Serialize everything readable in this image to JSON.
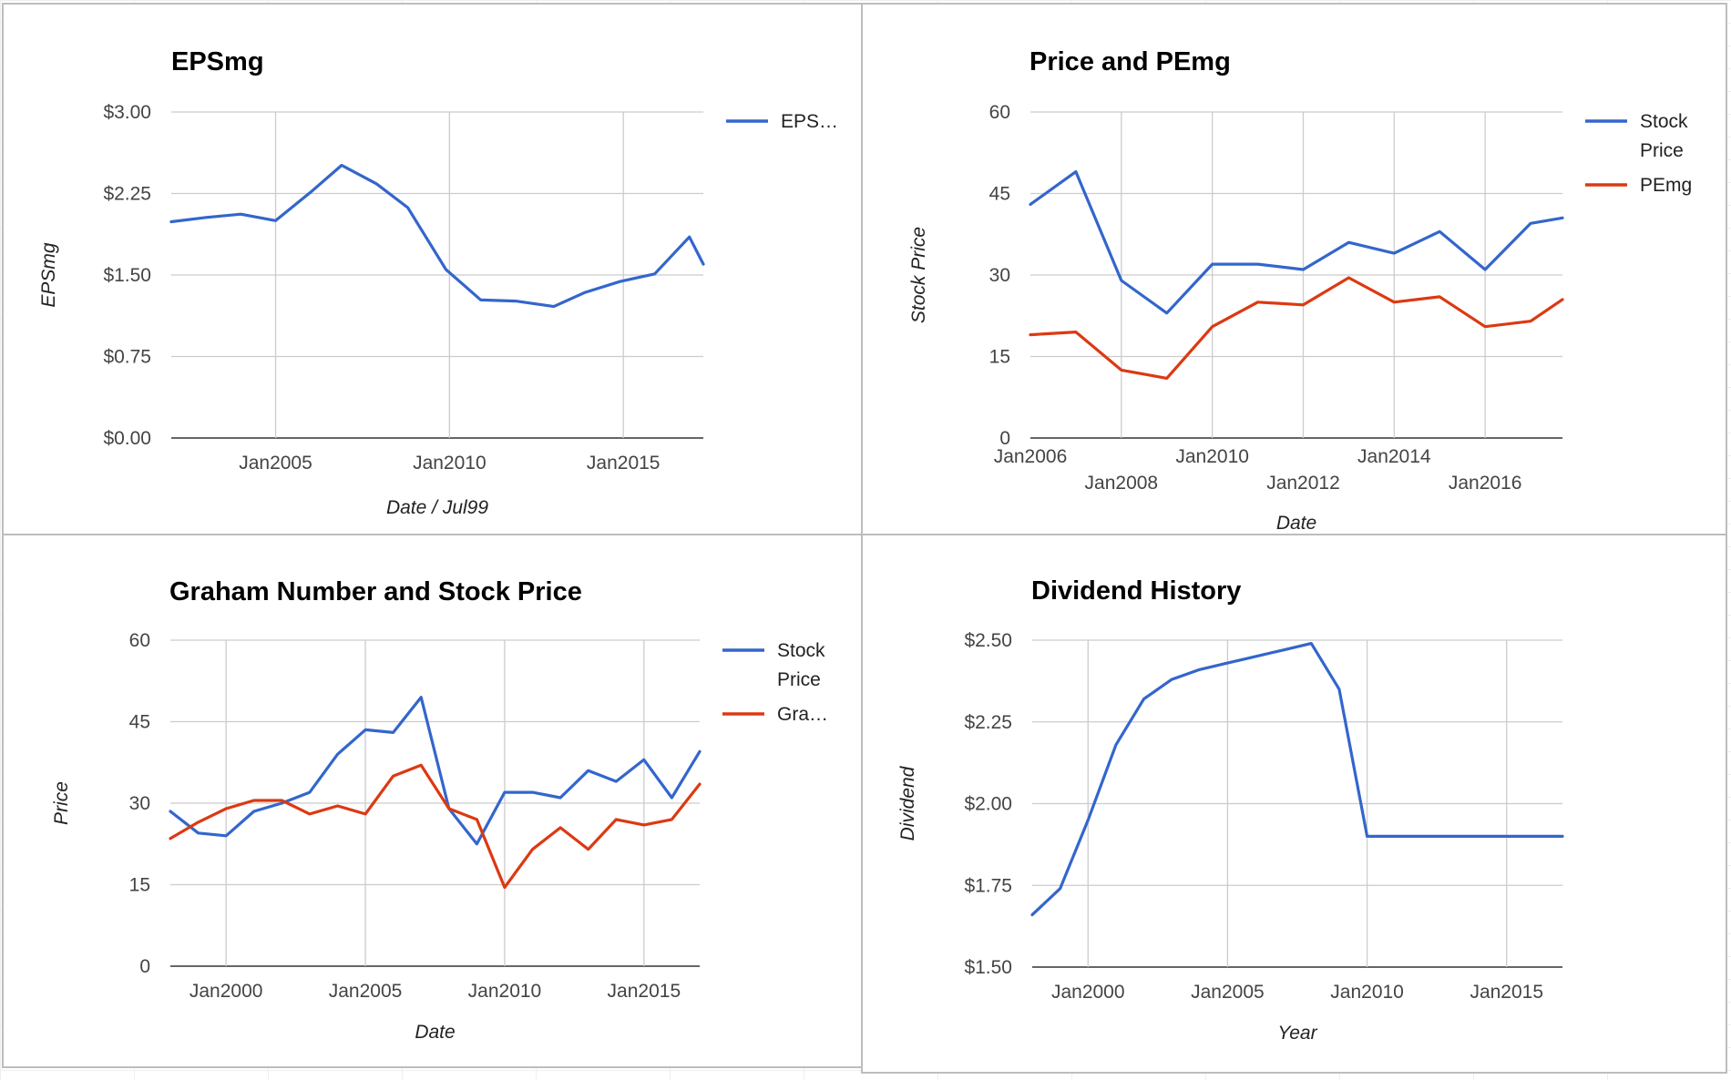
{
  "chart_data": [
    {
      "type": "line",
      "title": "EPSmg",
      "xlabel": "Date / Jul99",
      "ylabel": "EPSmg",
      "x_type": "year",
      "xlim": [
        2002,
        2017.3
      ],
      "ylim": [
        0,
        3
      ],
      "yticks": [
        0,
        0.75,
        1.5,
        2.25,
        3
      ],
      "ytick_labels": [
        "$0.00",
        "$0.75",
        "$1.50",
        "$2.25",
        "$3.00"
      ],
      "xticks": [
        2005,
        2010,
        2015
      ],
      "xtick_labels": [
        "Jan2005",
        "Jan2010",
        "Jan2015"
      ],
      "legend_position": "right",
      "grid": true,
      "series": [
        {
          "name": "EPS…",
          "color": "#3366cc",
          "points": [
            [
              2002.0,
              1.99
            ],
            [
              2003.0,
              2.03
            ],
            [
              2004.0,
              2.06
            ],
            [
              2005.0,
              2.0
            ],
            [
              2006.0,
              2.26
            ],
            [
              2006.9,
              2.51
            ],
            [
              2007.9,
              2.34
            ],
            [
              2008.8,
              2.12
            ],
            [
              2009.9,
              1.55
            ],
            [
              2010.9,
              1.27
            ],
            [
              2011.9,
              1.26
            ],
            [
              2013.0,
              1.21
            ],
            [
              2013.9,
              1.34
            ],
            [
              2014.9,
              1.44
            ],
            [
              2015.9,
              1.51
            ],
            [
              2016.9,
              1.85
            ],
            [
              2017.3,
              1.6
            ]
          ]
        }
      ]
    },
    {
      "type": "line",
      "title": "Price and PEmg",
      "xlabel": "Date",
      "ylabel": "Stock Price",
      "x_type": "year",
      "xlim": [
        2006,
        2017.7
      ],
      "ylim": [
        0,
        60
      ],
      "yticks": [
        0,
        15,
        30,
        45,
        60
      ],
      "ytick_labels": [
        "0",
        "15",
        "30",
        "45",
        "60"
      ],
      "xticks": [
        2006,
        2008,
        2010,
        2012,
        2014,
        2016
      ],
      "xtick_labels": [
        "Jan2006",
        "Jan2008",
        "Jan2010",
        "Jan2012",
        "Jan2014",
        "Jan2016"
      ],
      "xtick_staggered": true,
      "legend_position": "right",
      "grid": true,
      "series": [
        {
          "name": "Stock Price",
          "legend_lines": [
            "Stock",
            "Price"
          ],
          "color": "#3366cc",
          "points": [
            [
              2006.0,
              43.0
            ],
            [
              2007.0,
              49.0
            ],
            [
              2008.0,
              29.0
            ],
            [
              2009.0,
              23.0
            ],
            [
              2010.0,
              32.0
            ],
            [
              2011.0,
              32.0
            ],
            [
              2012.0,
              31.0
            ],
            [
              2013.0,
              36.0
            ],
            [
              2014.0,
              34.0
            ],
            [
              2015.0,
              38.0
            ],
            [
              2016.0,
              31.0
            ],
            [
              2017.0,
              39.5
            ],
            [
              2017.7,
              40.5
            ]
          ]
        },
        {
          "name": "PEmg",
          "legend_lines": [
            "PEmg"
          ],
          "color": "#dc3912",
          "points": [
            [
              2006.0,
              19.0
            ],
            [
              2007.0,
              19.5
            ],
            [
              2008.0,
              12.5
            ],
            [
              2009.0,
              11.0
            ],
            [
              2010.0,
              20.5
            ],
            [
              2011.0,
              25.0
            ],
            [
              2012.0,
              24.5
            ],
            [
              2013.0,
              29.5
            ],
            [
              2014.0,
              25.0
            ],
            [
              2015.0,
              26.0
            ],
            [
              2016.0,
              20.5
            ],
            [
              2017.0,
              21.5
            ],
            [
              2017.7,
              25.5
            ]
          ]
        }
      ]
    },
    {
      "type": "line",
      "title": "Graham Number and Stock Price",
      "xlabel": "Date",
      "ylabel": "Price",
      "x_type": "year",
      "xlim": [
        1998,
        2017
      ],
      "ylim": [
        0,
        60
      ],
      "yticks": [
        0,
        15,
        30,
        45,
        60
      ],
      "ytick_labels": [
        "0",
        "15",
        "30",
        "45",
        "60"
      ],
      "xticks": [
        2000,
        2005,
        2010,
        2015
      ],
      "xtick_labels": [
        "Jan2000",
        "Jan2005",
        "Jan2010",
        "Jan2015"
      ],
      "legend_position": "right",
      "grid": true,
      "series": [
        {
          "name": "Stock Price",
          "legend_lines": [
            "Stock",
            "Price"
          ],
          "color": "#3366cc",
          "points": [
            [
              1998.0,
              28.5
            ],
            [
              1999.0,
              24.5
            ],
            [
              2000.0,
              24.0
            ],
            [
              2001.0,
              28.5
            ],
            [
              2002.0,
              30.0
            ],
            [
              2003.0,
              32.0
            ],
            [
              2004.0,
              39.0
            ],
            [
              2005.0,
              43.5
            ],
            [
              2006.0,
              43.0
            ],
            [
              2007.0,
              49.5
            ],
            [
              2008.0,
              29.0
            ],
            [
              2009.0,
              22.5
            ],
            [
              2010.0,
              32.0
            ],
            [
              2011.0,
              32.0
            ],
            [
              2012.0,
              31.0
            ],
            [
              2013.0,
              36.0
            ],
            [
              2014.0,
              34.0
            ],
            [
              2015.0,
              38.0
            ],
            [
              2016.0,
              31.0
            ],
            [
              2017.0,
              39.5
            ]
          ]
        },
        {
          "name": "Gra…",
          "legend_lines": [
            "Gra…"
          ],
          "color": "#dc3912",
          "points": [
            [
              1998.0,
              23.5
            ],
            [
              1999.0,
              26.5
            ],
            [
              2000.0,
              29.0
            ],
            [
              2001.0,
              30.5
            ],
            [
              2002.0,
              30.5
            ],
            [
              2003.0,
              28.0
            ],
            [
              2004.0,
              29.5
            ],
            [
              2005.0,
              28.0
            ],
            [
              2006.0,
              35.0
            ],
            [
              2007.0,
              37.0
            ],
            [
              2008.0,
              29.0
            ],
            [
              2009.0,
              27.0
            ],
            [
              2010.0,
              14.5
            ],
            [
              2011.0,
              21.5
            ],
            [
              2012.0,
              25.5
            ],
            [
              2013.0,
              21.5
            ],
            [
              2014.0,
              27.0
            ],
            [
              2015.0,
              26.0
            ],
            [
              2016.0,
              27.0
            ],
            [
              2017.0,
              33.5
            ]
          ]
        }
      ]
    },
    {
      "type": "line",
      "title": "Dividend History",
      "xlabel": "Year",
      "ylabel": "Dividend",
      "x_type": "year",
      "xlim": [
        1998,
        2017
      ],
      "ylim": [
        1.5,
        2.5
      ],
      "yticks": [
        1.5,
        1.75,
        2.0,
        2.25,
        2.5
      ],
      "ytick_labels": [
        "$1.50",
        "$1.75",
        "$2.00",
        "$2.25",
        "$2.50"
      ],
      "xticks": [
        2000,
        2005,
        2010,
        2015
      ],
      "xtick_labels": [
        "Jan2000",
        "Jan2005",
        "Jan2010",
        "Jan2015"
      ],
      "legend_position": "none",
      "grid": true,
      "series": [
        {
          "name": "",
          "color": "#3366cc",
          "points": [
            [
              1998.0,
              1.66
            ],
            [
              1999.0,
              1.74
            ],
            [
              2000.0,
              1.95
            ],
            [
              2001.0,
              2.18
            ],
            [
              2002.0,
              2.32
            ],
            [
              2003.0,
              2.38
            ],
            [
              2004.0,
              2.41
            ],
            [
              2005.0,
              2.43
            ],
            [
              2006.0,
              2.45
            ],
            [
              2007.0,
              2.47
            ],
            [
              2008.0,
              2.49
            ],
            [
              2009.0,
              2.35
            ],
            [
              2010.0,
              1.9
            ],
            [
              2011.0,
              1.9
            ],
            [
              2012.0,
              1.9
            ],
            [
              2013.0,
              1.9
            ],
            [
              2014.0,
              1.9
            ],
            [
              2015.0,
              1.9
            ],
            [
              2016.0,
              1.9
            ],
            [
              2017.0,
              1.9
            ]
          ]
        }
      ]
    }
  ]
}
